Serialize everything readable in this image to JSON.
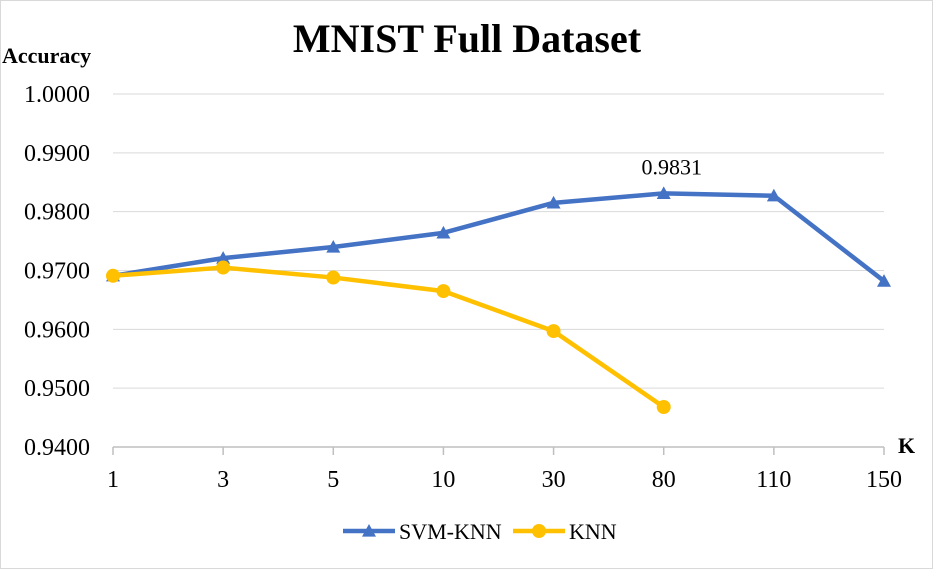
{
  "chart_data": {
    "type": "line",
    "title": "MNIST Full Dataset",
    "ylabel": "Accuracy",
    "xlabel": "K",
    "categories": [
      "1",
      "3",
      "5",
      "10",
      "30",
      "80",
      "110",
      "150"
    ],
    "ylim": [
      0.94,
      1.0
    ],
    "yticks": [
      "0.9400",
      "0.9500",
      "0.9600",
      "0.9700",
      "0.9800",
      "0.9900",
      "1.0000"
    ],
    "grid": true,
    "legend_position": "bottom",
    "series": [
      {
        "name": "SVM-KNN",
        "color": "#4472C4",
        "marker": "triangle",
        "values": [
          0.9691,
          0.9721,
          0.974,
          0.9764,
          0.9815,
          0.9831,
          0.9827,
          0.9682
        ]
      },
      {
        "name": "KNN",
        "color": "#FFC000",
        "marker": "circle",
        "values": [
          0.9691,
          0.9705,
          0.9688,
          0.9665,
          0.9597,
          0.9468,
          null,
          null
        ]
      }
    ],
    "annotations": [
      {
        "series": 0,
        "index": 5,
        "text": "0.9831"
      }
    ]
  }
}
